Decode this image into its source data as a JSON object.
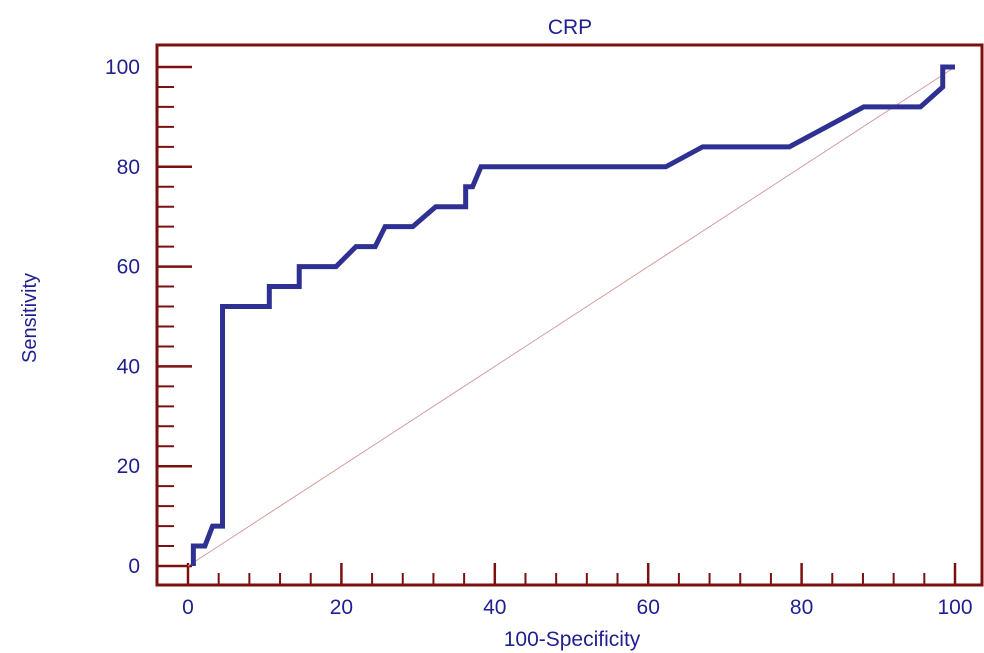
{
  "chart_data": {
    "type": "line",
    "title": "CRP",
    "xlabel": "100-Specificity",
    "ylabel": "Sensitivity",
    "xlim": [
      0,
      100
    ],
    "ylim": [
      0,
      100
    ],
    "x_ticks": [
      0,
      20,
      40,
      60,
      80,
      100
    ],
    "y_ticks": [
      0,
      20,
      40,
      60,
      80,
      100
    ],
    "grid": false,
    "legend": "none",
    "colors": {
      "roc_curve": "#2e3192",
      "diagonal": "#d49a9a",
      "axis_frame": "#7a1010",
      "text": "#1f1f8f"
    },
    "series": [
      {
        "role": "roc-curve",
        "points": [
          [
            0.7,
            0
          ],
          [
            0.7,
            4
          ],
          [
            2.2,
            4
          ],
          [
            3.2,
            8
          ],
          [
            4.5,
            8
          ],
          [
            4.5,
            52
          ],
          [
            10.6,
            52
          ],
          [
            10.6,
            56
          ],
          [
            14.5,
            56
          ],
          [
            14.5,
            60
          ],
          [
            19.3,
            60
          ],
          [
            21.9,
            64
          ],
          [
            24.4,
            64
          ],
          [
            25.7,
            68
          ],
          [
            29.3,
            68
          ],
          [
            32.3,
            72
          ],
          [
            36.2,
            72
          ],
          [
            36.2,
            76
          ],
          [
            37.1,
            76
          ],
          [
            38.2,
            80
          ],
          [
            62.3,
            80
          ],
          [
            67.1,
            84
          ],
          [
            78.4,
            84
          ],
          [
            88.1,
            92
          ],
          [
            95.5,
            92
          ],
          [
            98.4,
            96
          ],
          [
            98.4,
            100
          ],
          [
            100,
            100
          ]
        ]
      },
      {
        "role": "reference-diagonal",
        "points": [
          [
            0,
            0
          ],
          [
            100,
            100
          ]
        ]
      }
    ]
  }
}
